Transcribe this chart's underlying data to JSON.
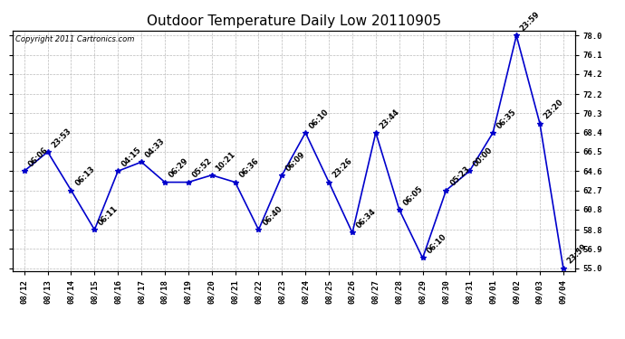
{
  "title": "Outdoor Temperature Daily Low 20110905",
  "copyright": "Copyright 2011 Cartronics.com",
  "dates": [
    "08/12",
    "08/13",
    "08/14",
    "08/15",
    "08/16",
    "08/17",
    "08/18",
    "08/19",
    "08/20",
    "08/21",
    "08/22",
    "08/23",
    "08/24",
    "08/25",
    "08/26",
    "08/27",
    "08/28",
    "08/29",
    "08/30",
    "08/31",
    "09/01",
    "09/02",
    "09/03",
    "09/04"
  ],
  "values": [
    64.6,
    66.5,
    62.7,
    58.8,
    64.6,
    65.5,
    63.5,
    63.5,
    64.2,
    63.5,
    58.8,
    64.2,
    68.4,
    63.5,
    58.5,
    68.4,
    60.8,
    56.0,
    62.7,
    64.6,
    68.4,
    78.0,
    69.3,
    55.0
  ],
  "labels": [
    "06:06",
    "23:53",
    "06:13",
    "06:11",
    "04:15",
    "04:33",
    "06:29",
    "05:52",
    "10:21",
    "06:36",
    "06:40",
    "06:09",
    "06:10",
    "23:26",
    "06:34",
    "23:44",
    "06:05",
    "06:10",
    "05:23",
    "00:00",
    "06:35",
    "23:59",
    "23:20",
    "23:59"
  ],
  "line_color": "#0000CC",
  "marker_color": "#0000CC",
  "bg_color": "#FFFFFF",
  "grid_color": "#BBBBBB",
  "ylim_min": 55.0,
  "ylim_max": 78.0,
  "yticks": [
    55.0,
    56.9,
    58.8,
    60.8,
    62.7,
    64.6,
    66.5,
    68.4,
    70.3,
    72.2,
    74.2,
    76.1,
    78.0
  ],
  "title_fontsize": 11,
  "copyright_fontsize": 6,
  "label_fontsize": 6
}
